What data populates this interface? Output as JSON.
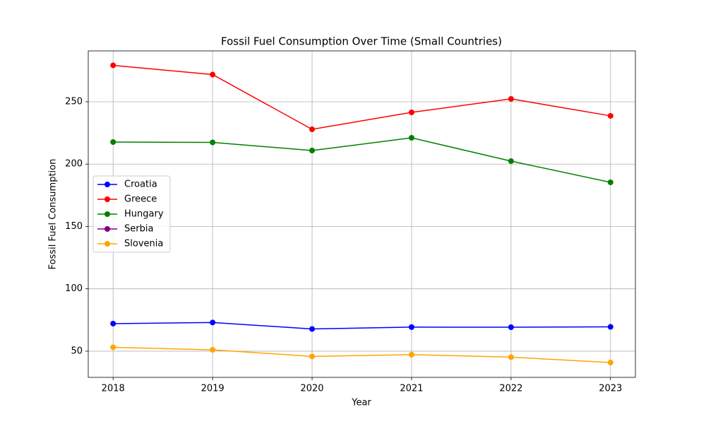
{
  "chart_data": {
    "type": "line",
    "title": "Fossil Fuel Consumption Over Time (Small Countries)",
    "x_label": "Year",
    "y_label": "Fossil Fuel Consumption",
    "x": [
      2018,
      2019,
      2020,
      2021,
      2022,
      2023
    ],
    "series": [
      {
        "name": "Croatia",
        "color": "blue",
        "values": [
          72.1,
          73.0,
          67.8,
          69.3,
          69.2,
          69.5
        ]
      },
      {
        "name": "Greece",
        "color": "red",
        "values": [
          279.2,
          271.8,
          227.9,
          241.5,
          252.3,
          238.7
        ]
      },
      {
        "name": "Hungary",
        "color": "green",
        "values": [
          217.7,
          217.4,
          210.9,
          221.1,
          202.4,
          185.4
        ]
      },
      {
        "name": "Serbia",
        "color": "purple",
        "values": [
          null,
          null,
          null,
          null,
          null,
          null
        ]
      },
      {
        "name": "Slovenia",
        "color": "orange",
        "values": [
          53.1,
          51.1,
          45.8,
          47.2,
          45.2,
          40.9
        ]
      }
    ],
    "xlim": [
      2017.75,
      2023.25
    ],
    "xticks": [
      2018,
      2019,
      2020,
      2021,
      2022,
      2023
    ],
    "ylim": [
      29,
      290.8
    ],
    "yticks": [
      50,
      100,
      150,
      200,
      250
    ],
    "grid": true,
    "legend": "center left"
  }
}
